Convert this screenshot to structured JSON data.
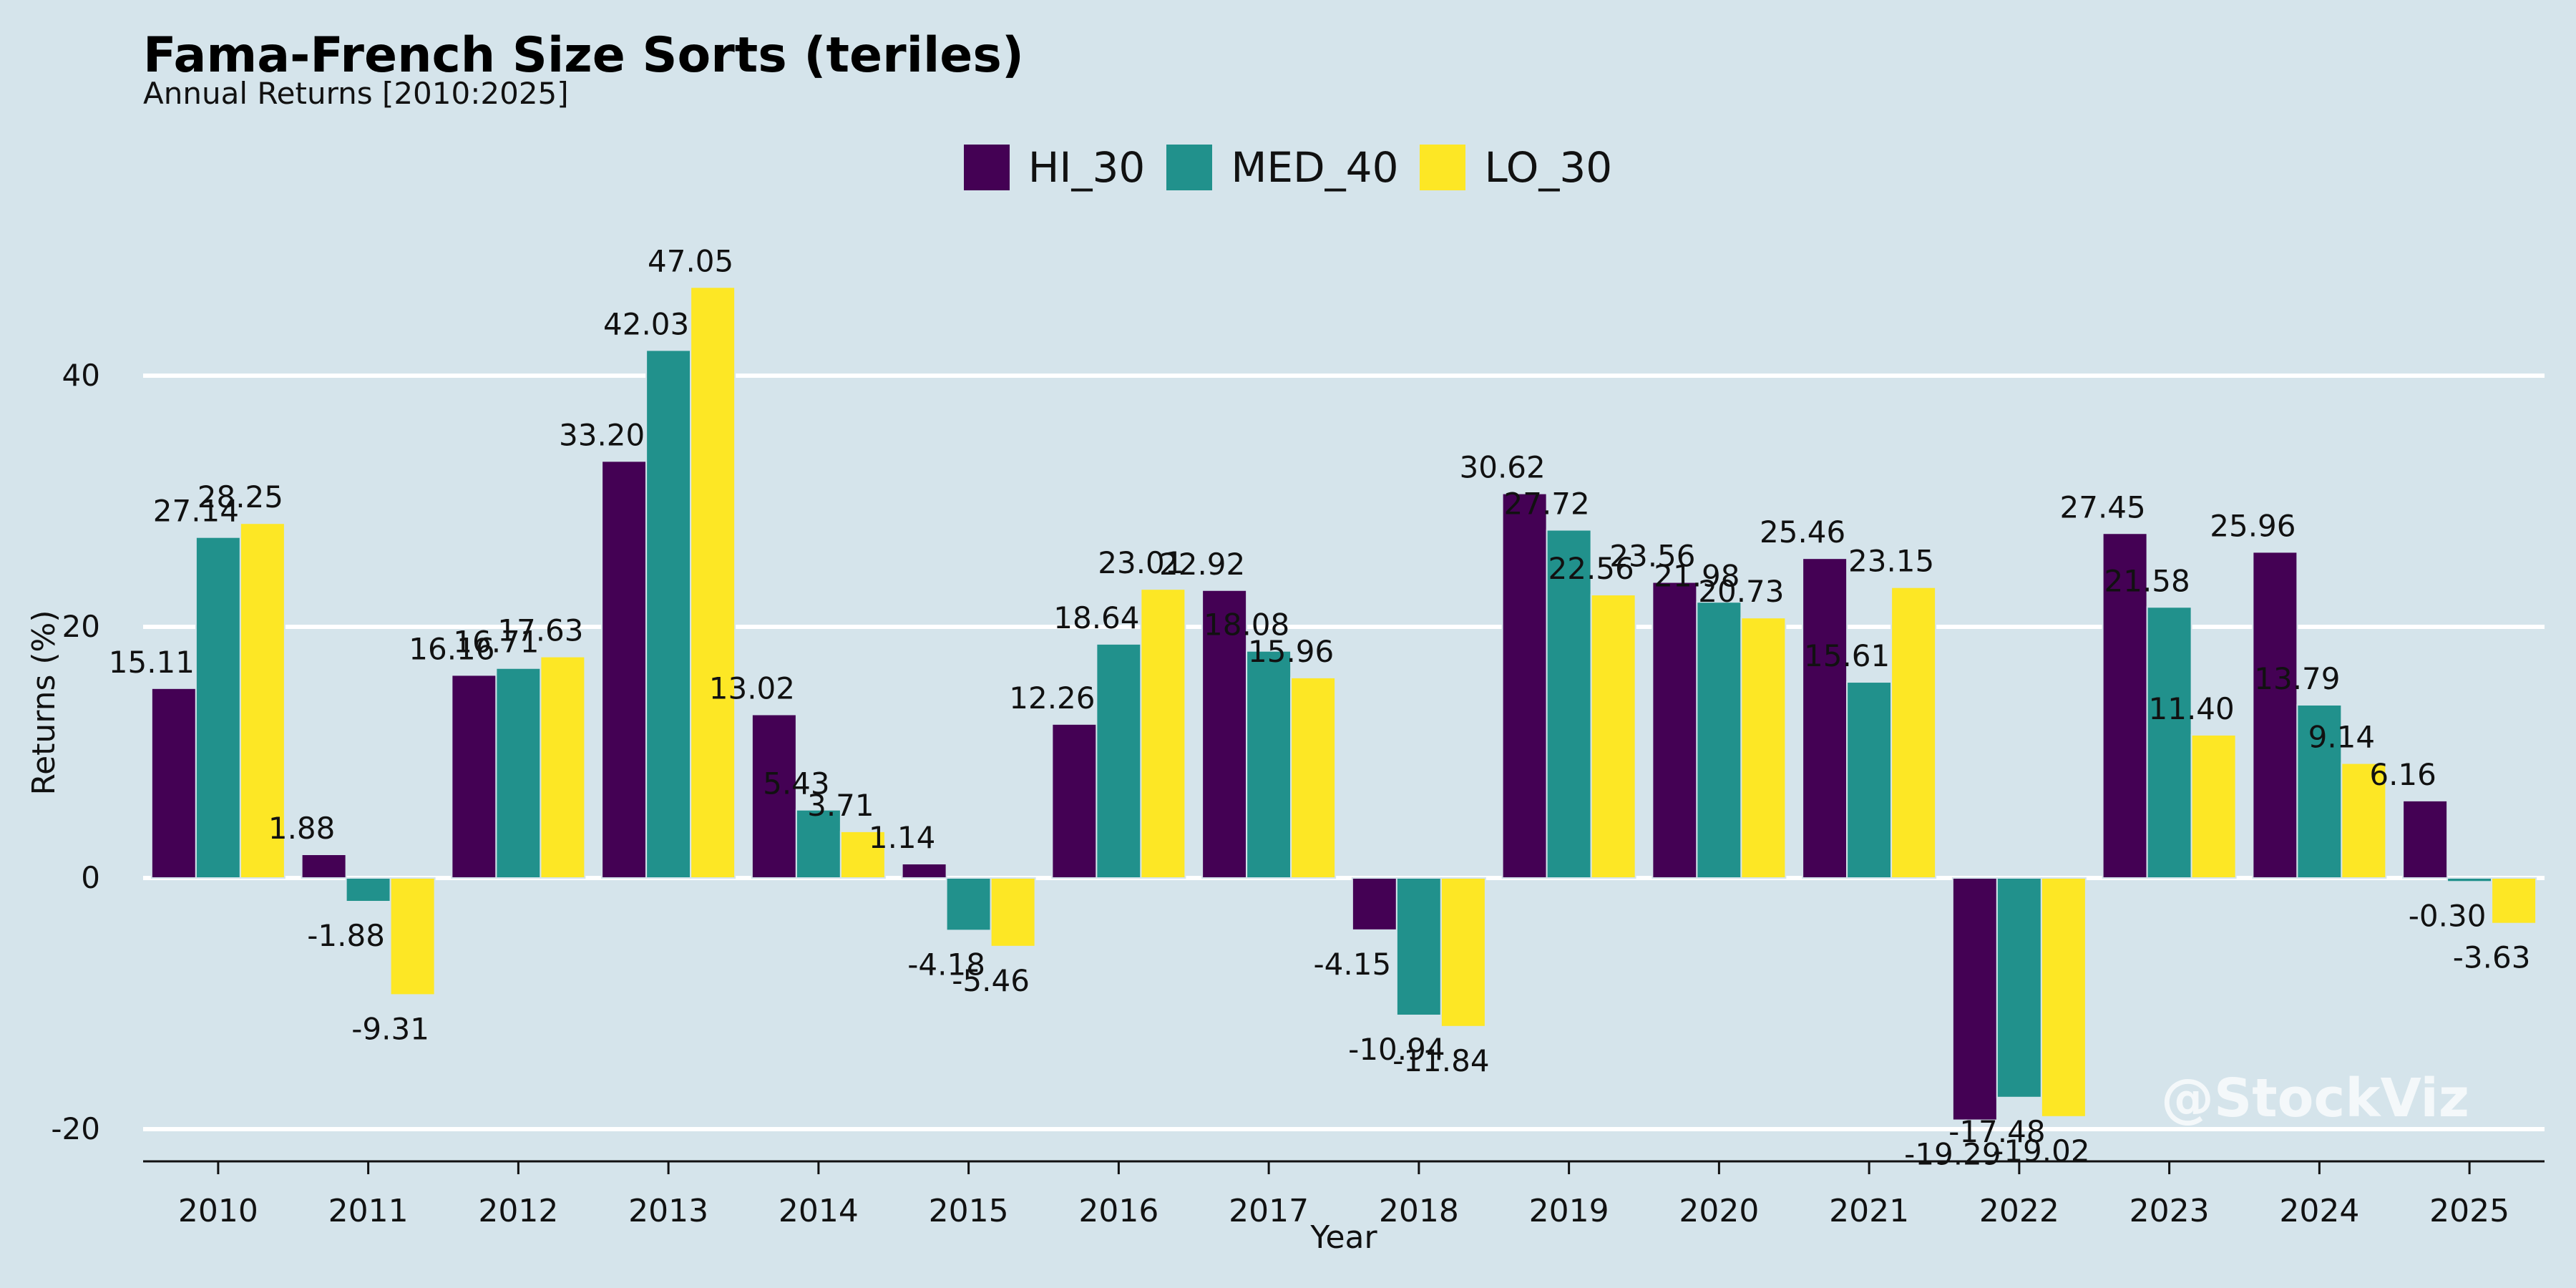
{
  "chart_data": {
    "type": "bar",
    "title": "Fama-French Size Sorts (teriles)",
    "subtitle": "Annual Returns [2010:2025]",
    "xlabel": "Year",
    "ylabel": "Returns (%)",
    "categories": [
      "2010",
      "2011",
      "2012",
      "2013",
      "2014",
      "2015",
      "2016",
      "2017",
      "2018",
      "2019",
      "2020",
      "2021",
      "2022",
      "2023",
      "2024",
      "2025"
    ],
    "series": [
      {
        "name": "HI_30",
        "color": "#440154",
        "values": [
          15.11,
          1.88,
          16.16,
          33.2,
          13.02,
          1.14,
          12.26,
          22.92,
          -4.15,
          30.62,
          23.56,
          25.46,
          -19.29,
          27.45,
          25.96,
          6.16
        ]
      },
      {
        "name": "MED_40",
        "color": "#21918c",
        "values": [
          27.14,
          -1.88,
          16.71,
          42.03,
          5.43,
          -4.18,
          18.64,
          18.08,
          -10.94,
          27.72,
          21.98,
          15.61,
          -17.48,
          21.58,
          13.79,
          -0.3
        ]
      },
      {
        "name": "LO_30",
        "color": "#fde725",
        "values": [
          28.25,
          -9.31,
          17.63,
          47.05,
          3.71,
          -5.46,
          23.01,
          15.96,
          -11.84,
          22.56,
          20.73,
          23.15,
          -19.02,
          11.4,
          9.14,
          -3.63
        ]
      }
    ],
    "yticks": [
      -20,
      0,
      20,
      40
    ],
    "ylim": [
      -22.6,
      50.5
    ],
    "grid": "horizontal",
    "legend_position": "top-center"
  },
  "watermark": "@StockViz"
}
